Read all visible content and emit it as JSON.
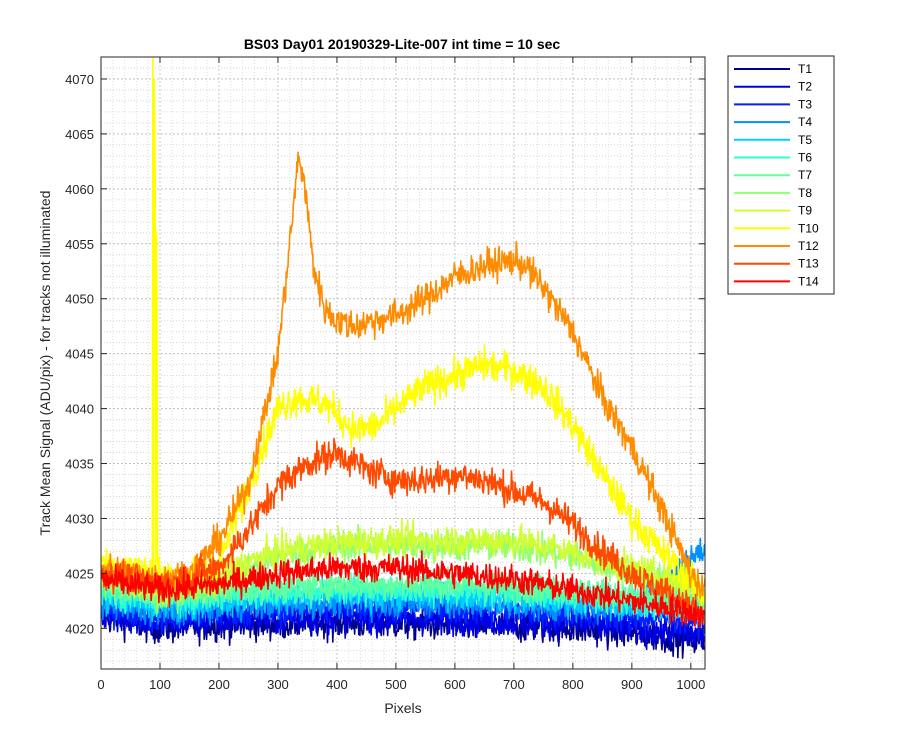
{
  "chart_data": {
    "type": "line",
    "title": "BS03 Day01 20190329-Lite-007 int time = 10 sec",
    "xlabel": "Pixels",
    "ylabel": "Track Mean Signal (ADU/pix) - for tracks not illuminated",
    "xlim": [
      0,
      1024
    ],
    "ylim": [
      4016.3,
      4072
    ],
    "xticks": [
      0,
      100,
      200,
      300,
      400,
      500,
      600,
      700,
      800,
      900,
      1000
    ],
    "yticks": [
      4020,
      4025,
      4030,
      4035,
      4040,
      4045,
      4050,
      4055,
      4060,
      4065,
      4070
    ],
    "xtick_labels": [
      "0",
      "100",
      "200",
      "300",
      "400",
      "500",
      "600",
      "700",
      "800",
      "900",
      "1000"
    ],
    "ytick_labels": [
      "4020",
      "4025",
      "4030",
      "4035",
      "4040",
      "4045",
      "4050",
      "4055",
      "4060",
      "4065",
      "4070"
    ],
    "grid": "major and minor",
    "legend_position": "outside-right",
    "series": [
      {
        "name": "T1",
        "color": "#00008f",
        "noise": 1.2,
        "points": [
          [
            0,
            4021
          ],
          [
            100,
            4020
          ],
          [
            200,
            4020.3
          ],
          [
            400,
            4020.5
          ],
          [
            600,
            4020.3
          ],
          [
            800,
            4020
          ],
          [
            900,
            4019.5
          ],
          [
            1000,
            4019
          ],
          [
            1024,
            4018.8
          ]
        ]
      },
      {
        "name": "T2",
        "color": "#0000e6",
        "noise": 1.2,
        "points": [
          [
            0,
            4021.5
          ],
          [
            100,
            4020.5
          ],
          [
            200,
            4020.8
          ],
          [
            400,
            4021
          ],
          [
            600,
            4020.8
          ],
          [
            800,
            4020.5
          ],
          [
            900,
            4020
          ],
          [
            1000,
            4019.5
          ],
          [
            1024,
            4019.3
          ]
        ]
      },
      {
        "name": "T3",
        "color": "#0020ff",
        "noise": 1.2,
        "points": [
          [
            0,
            4022
          ],
          [
            100,
            4021
          ],
          [
            200,
            4021.5
          ],
          [
            400,
            4022
          ],
          [
            600,
            4021.8
          ],
          [
            800,
            4021.5
          ],
          [
            900,
            4021
          ],
          [
            1000,
            4021
          ],
          [
            1024,
            4021
          ]
        ]
      },
      {
        "name": "T4",
        "color": "#0090ff",
        "noise": 1.2,
        "points": [
          [
            0,
            4022.5
          ],
          [
            100,
            4021.5
          ],
          [
            200,
            4022
          ],
          [
            400,
            4022.5
          ],
          [
            600,
            4022.3
          ],
          [
            800,
            4022
          ],
          [
            900,
            4022.5
          ],
          [
            960,
            4024
          ],
          [
            1000,
            4026.5
          ],
          [
            1024,
            4027
          ]
        ]
      },
      {
        "name": "T5",
        "color": "#00cfff",
        "noise": 1.1,
        "points": [
          [
            0,
            4023
          ],
          [
            100,
            4022
          ],
          [
            200,
            4022.5
          ],
          [
            400,
            4023
          ],
          [
            600,
            4023
          ],
          [
            800,
            4022.5
          ],
          [
            900,
            4022
          ],
          [
            1000,
            4021.5
          ],
          [
            1024,
            4021.3
          ]
        ]
      },
      {
        "name": "T6",
        "color": "#30ffcf",
        "noise": 1.1,
        "points": [
          [
            0,
            4023.5
          ],
          [
            100,
            4022.5
          ],
          [
            200,
            4023
          ],
          [
            400,
            4023.5
          ],
          [
            600,
            4023.5
          ],
          [
            800,
            4023
          ],
          [
            900,
            4022.5
          ],
          [
            1000,
            4022
          ],
          [
            1024,
            4021.8
          ]
        ]
      },
      {
        "name": "T7",
        "color": "#60ffa0",
        "noise": 1.1,
        "points": [
          [
            0,
            4024
          ],
          [
            100,
            4023
          ],
          [
            200,
            4023.5
          ],
          [
            400,
            4024
          ],
          [
            600,
            4024
          ],
          [
            800,
            4023.5
          ],
          [
            900,
            4023
          ],
          [
            1000,
            4022.5
          ],
          [
            1024,
            4022.3
          ]
        ]
      },
      {
        "name": "T8",
        "color": "#90ff70",
        "noise": 1.2,
        "points": [
          [
            0,
            4024.5
          ],
          [
            100,
            4023
          ],
          [
            200,
            4024
          ],
          [
            250,
            4025.5
          ],
          [
            300,
            4026.5
          ],
          [
            400,
            4027.5
          ],
          [
            500,
            4027.5
          ],
          [
            600,
            4027.5
          ],
          [
            700,
            4027.5
          ],
          [
            800,
            4026.5
          ],
          [
            900,
            4025
          ],
          [
            1000,
            4023.5
          ],
          [
            1024,
            4023
          ]
        ]
      },
      {
        "name": "T9",
        "color": "#cfff30",
        "noise": 1.2,
        "points": [
          [
            0,
            4025
          ],
          [
            100,
            4023.5
          ],
          [
            200,
            4024.5
          ],
          [
            250,
            4026
          ],
          [
            300,
            4027
          ],
          [
            400,
            4027.8
          ],
          [
            500,
            4028
          ],
          [
            600,
            4028
          ],
          [
            700,
            4028
          ],
          [
            800,
            4027
          ],
          [
            900,
            4025.5
          ],
          [
            1000,
            4024
          ],
          [
            1024,
            4023.5
          ]
        ]
      },
      {
        "name": "T10",
        "color": "#ffff00",
        "noise": 1.3,
        "spikes": [
          [
            88,
            4072
          ],
          [
            90,
            4070
          ],
          [
            91,
            4066
          ],
          [
            92,
            4060
          ],
          [
            94,
            4056
          ],
          [
            95,
            4045
          ]
        ],
        "points": [
          [
            0,
            4026
          ],
          [
            100,
            4025
          ],
          [
            150,
            4024.5
          ],
          [
            200,
            4026
          ],
          [
            250,
            4033
          ],
          [
            300,
            4040
          ],
          [
            330,
            4041
          ],
          [
            380,
            4040.5
          ],
          [
            430,
            4038
          ],
          [
            470,
            4038.5
          ],
          [
            500,
            4040
          ],
          [
            550,
            4042
          ],
          [
            600,
            4043
          ],
          [
            650,
            4044
          ],
          [
            700,
            4043.5
          ],
          [
            750,
            4042
          ],
          [
            800,
            4038.5
          ],
          [
            850,
            4034
          ],
          [
            900,
            4030
          ],
          [
            950,
            4027
          ],
          [
            1000,
            4024.5
          ],
          [
            1024,
            4023
          ]
        ]
      },
      {
        "name": "T12",
        "color": "#ff8c00",
        "noise": 1.2,
        "points": [
          [
            0,
            4025.5
          ],
          [
            100,
            4024.5
          ],
          [
            150,
            4025
          ],
          [
            200,
            4028
          ],
          [
            250,
            4033
          ],
          [
            300,
            4045
          ],
          [
            320,
            4055
          ],
          [
            335,
            4063
          ],
          [
            345,
            4060.5
          ],
          [
            360,
            4053
          ],
          [
            380,
            4049
          ],
          [
            400,
            4048
          ],
          [
            430,
            4047.5
          ],
          [
            460,
            4048
          ],
          [
            500,
            4048.5
          ],
          [
            550,
            4050
          ],
          [
            600,
            4052
          ],
          [
            650,
            4053
          ],
          [
            700,
            4053.5
          ],
          [
            720,
            4053
          ],
          [
            750,
            4051
          ],
          [
            800,
            4047
          ],
          [
            850,
            4041
          ],
          [
            900,
            4036.5
          ],
          [
            950,
            4031
          ],
          [
            1000,
            4025
          ],
          [
            1024,
            4023.5
          ]
        ]
      },
      {
        "name": "T13",
        "color": "#ff4a00",
        "noise": 1.2,
        "points": [
          [
            0,
            4025
          ],
          [
            100,
            4024
          ],
          [
            200,
            4025.5
          ],
          [
            250,
            4029
          ],
          [
            300,
            4033
          ],
          [
            350,
            4035
          ],
          [
            400,
            4036
          ],
          [
            450,
            4034.5
          ],
          [
            500,
            4033.5
          ],
          [
            550,
            4033.5
          ],
          [
            600,
            4034
          ],
          [
            650,
            4033.5
          ],
          [
            700,
            4032.5
          ],
          [
            750,
            4031.5
          ],
          [
            800,
            4029.5
          ],
          [
            850,
            4027
          ],
          [
            900,
            4025
          ],
          [
            950,
            4023.5
          ],
          [
            1000,
            4022
          ],
          [
            1024,
            4021
          ]
        ]
      },
      {
        "name": "T14",
        "color": "#ff0000",
        "noise": 1.1,
        "points": [
          [
            0,
            4024.5
          ],
          [
            100,
            4023.5
          ],
          [
            200,
            4024
          ],
          [
            300,
            4025
          ],
          [
            400,
            4025.5
          ],
          [
            500,
            4025.5
          ],
          [
            600,
            4025
          ],
          [
            700,
            4024.5
          ],
          [
            800,
            4023.5
          ],
          [
            900,
            4022.5
          ],
          [
            1000,
            4021.5
          ],
          [
            1024,
            4021
          ]
        ]
      }
    ]
  }
}
